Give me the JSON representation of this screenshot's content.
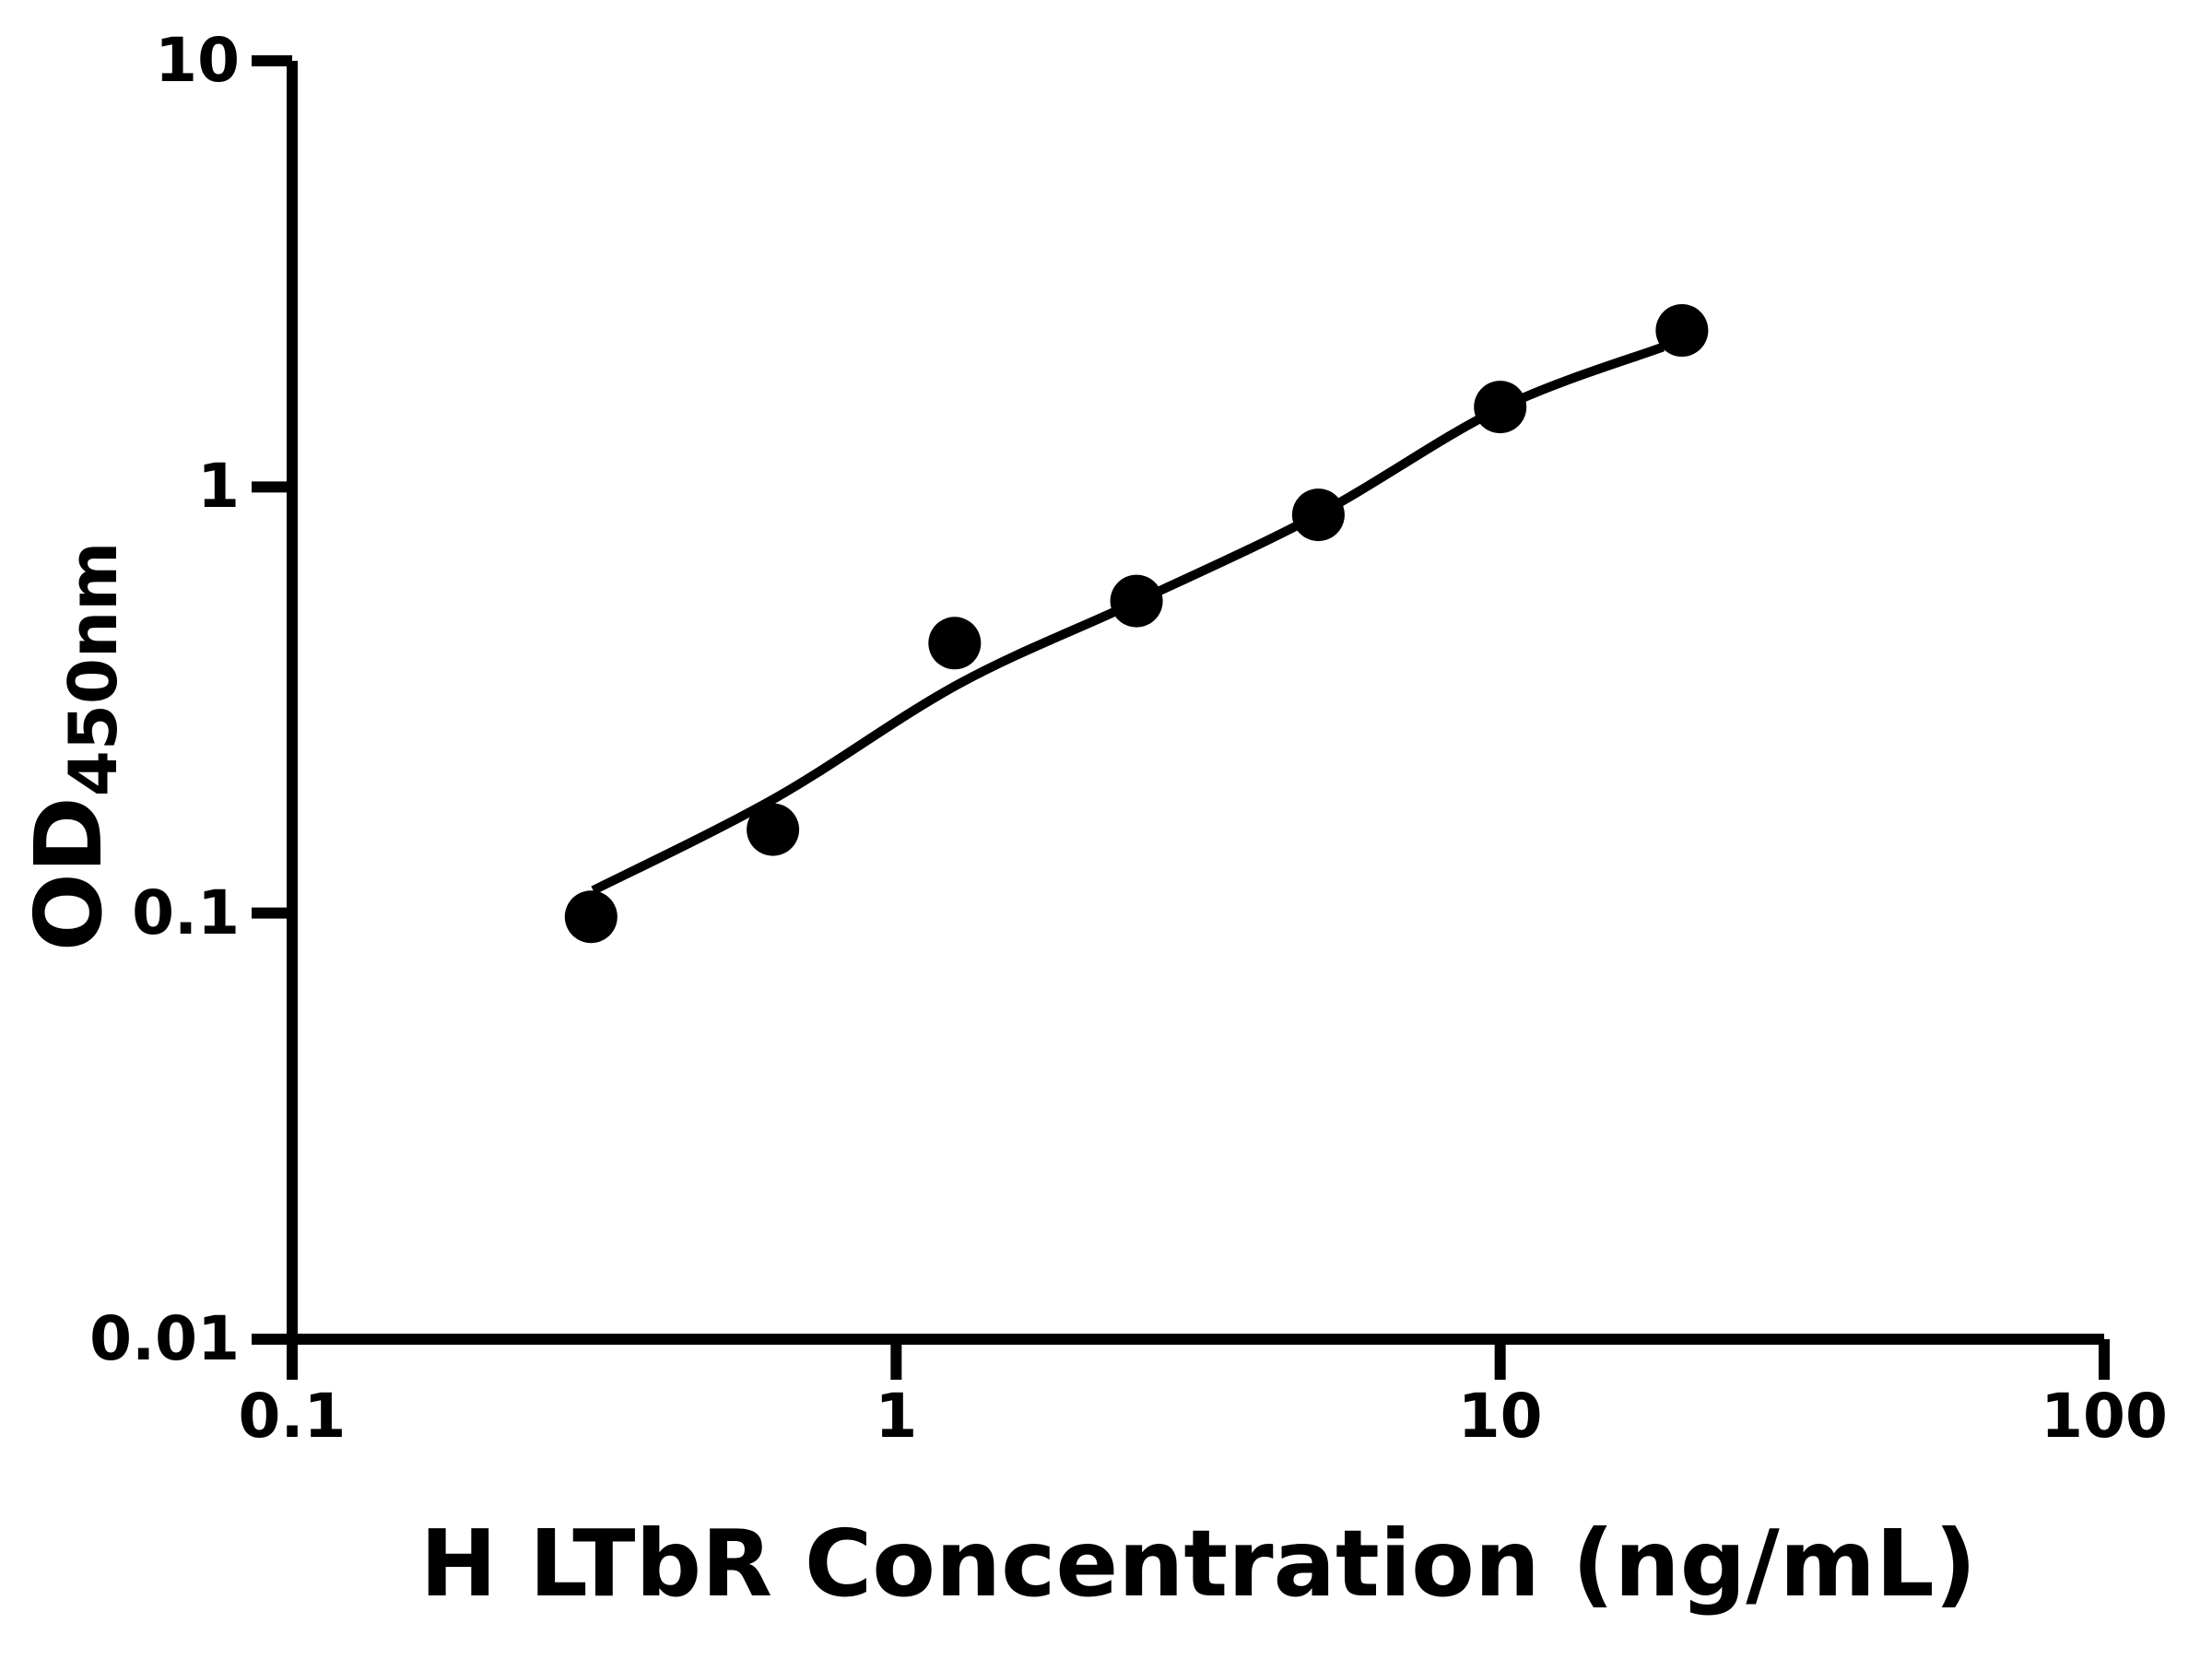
{
  "figure": {
    "background_color": "#ffffff",
    "ink_color": "#000000"
  },
  "y_axis": {
    "title_main": "OD",
    "title_sub": "450nm",
    "scale": "log",
    "tick_labels": [
      "10",
      "1",
      "0.1",
      "0.01"
    ]
  },
  "x_axis": {
    "title": "H LTbR Concentration (ng/mL)",
    "scale": "log",
    "tick_labels": [
      "0.1",
      "1",
      "10",
      "100"
    ]
  },
  "chart_data": {
    "type": "scatter",
    "title": "",
    "xlabel": "H LTbR Concentration (ng/mL)",
    "ylabel": "OD450nm",
    "x_scale": "log",
    "y_scale": "log",
    "xlim": [
      0.1,
      100
    ],
    "ylim": [
      0.01,
      10
    ],
    "x_ticks": [
      0.1,
      1,
      10,
      100
    ],
    "y_ticks": [
      10,
      1,
      0.1,
      0.01
    ],
    "grid": false,
    "legend": false,
    "marker_color": "#000000",
    "line_color": "#000000",
    "series": [
      {
        "name": "standard-curve-points",
        "marker": "filled-circle",
        "points": [
          [
            0.3125,
            0.098
          ],
          [
            0.625,
            0.157
          ],
          [
            1.25,
            0.43
          ],
          [
            2.5,
            0.54
          ],
          [
            5,
            0.86
          ],
          [
            10,
            1.54
          ],
          [
            20,
            2.33
          ]
        ]
      }
    ],
    "trend_line": {
      "name": "fitted-standard-curve",
      "points": [
        [
          0.315,
          0.113
        ],
        [
          0.63,
          0.186
        ],
        [
          1.27,
          0.345
        ],
        [
          2.5,
          0.538
        ],
        [
          5,
          0.862
        ],
        [
          10,
          1.53
        ],
        [
          18.6,
          2.13
        ]
      ]
    }
  }
}
